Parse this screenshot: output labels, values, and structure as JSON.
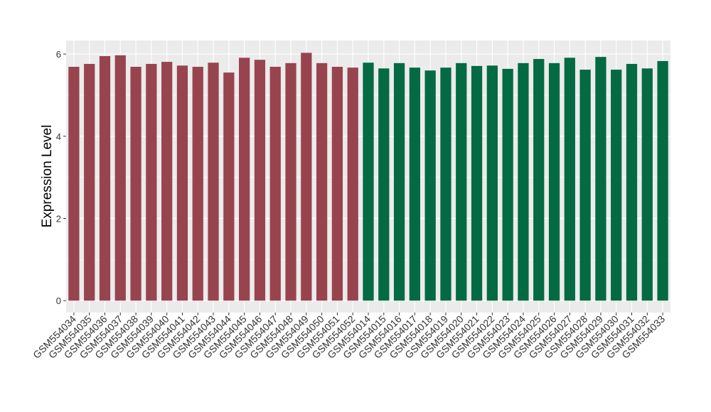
{
  "chart_data": {
    "type": "bar",
    "y_label": "Expression Level",
    "categories": [
      "GSM554034",
      "GSM554035",
      "GSM554036",
      "GSM554037",
      "GSM554038",
      "GSM554039",
      "GSM554040",
      "GSM554041",
      "GSM554042",
      "GSM554043",
      "GSM554044",
      "GSM554045",
      "GSM554046",
      "GSM554047",
      "GSM554048",
      "GSM554049",
      "GSM554050",
      "GSM554051",
      "GSM554052",
      "GSM554014",
      "GSM554015",
      "GSM554016",
      "GSM554017",
      "GSM554018",
      "GSM554019",
      "GSM554020",
      "GSM554021",
      "GSM554022",
      "GSM554023",
      "GSM554024",
      "GSM554025",
      "GSM554026",
      "GSM554027",
      "GSM554028",
      "GSM554029",
      "GSM554030",
      "GSM554031",
      "GSM554032",
      "GSM554033"
    ],
    "values": [
      5.69,
      5.76,
      5.95,
      5.97,
      5.69,
      5.76,
      5.81,
      5.72,
      5.69,
      5.79,
      5.55,
      5.91,
      5.86,
      5.69,
      5.78,
      6.03,
      5.78,
      5.69,
      5.67,
      5.79,
      5.65,
      5.78,
      5.67,
      5.6,
      5.67,
      5.78,
      5.71,
      5.72,
      5.64,
      5.78,
      5.88,
      5.78,
      5.91,
      5.62,
      5.93,
      5.62,
      5.76,
      5.65,
      5.83
    ],
    "colors": [
      "#98444f",
      "#98444f",
      "#98444f",
      "#98444f",
      "#98444f",
      "#98444f",
      "#98444f",
      "#98444f",
      "#98444f",
      "#98444f",
      "#98444f",
      "#98444f",
      "#98444f",
      "#98444f",
      "#98444f",
      "#98444f",
      "#98444f",
      "#98444f",
      "#98444f",
      "#036a43",
      "#036a43",
      "#036a43",
      "#036a43",
      "#036a43",
      "#036a43",
      "#036a43",
      "#036a43",
      "#036a43",
      "#036a43",
      "#036a43",
      "#036a43",
      "#036a43",
      "#036a43",
      "#036a43",
      "#036a43",
      "#036a43",
      "#036a43",
      "#036a43",
      "#036a43"
    ],
    "ylim": [
      -0.29,
      6.33
    ],
    "yticks": [
      0,
      2,
      4,
      6
    ],
    "grid": true
  }
}
